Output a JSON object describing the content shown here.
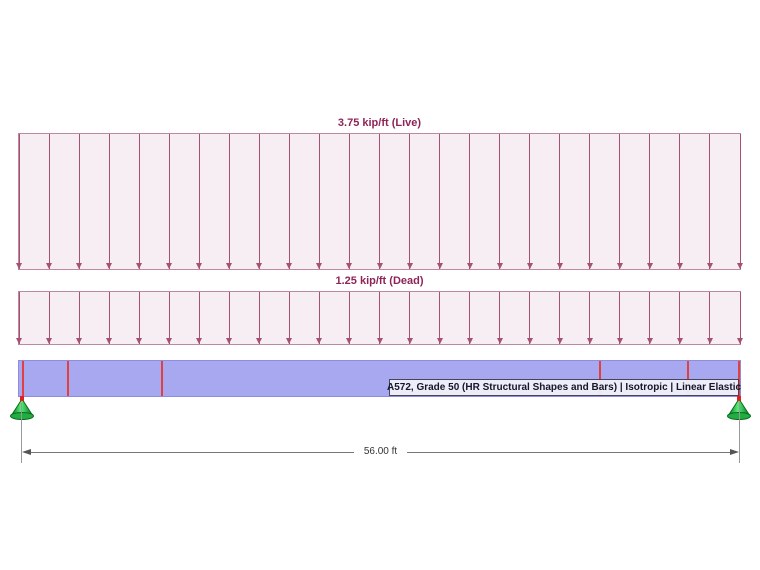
{
  "loads": {
    "live": {
      "label": "3.75 kip/ft (Live)",
      "arrow_count": 25
    },
    "dead": {
      "label": "1.25 kip/ft (Dead)",
      "arrow_count": 25
    }
  },
  "beam": {
    "material_label": "A572, Grade 50 (HR Structural Shapes and Bars) | Isotropic | Linear Elastic"
  },
  "dimension": {
    "label": "56.00 ft"
  },
  "colors": {
    "load_fill": "#f7eef3",
    "load_outline": "#bb8aa2",
    "load_arrow": "#a65072",
    "load_label_text": "#8e2457",
    "beam_fill": "#a8a8f0",
    "beam_outline": "#8c8ce0",
    "node_marker": "#e04040",
    "support_green": "#2ecc40",
    "support_dark_green": "#0a6b22",
    "dimension_gray": "#666666"
  }
}
